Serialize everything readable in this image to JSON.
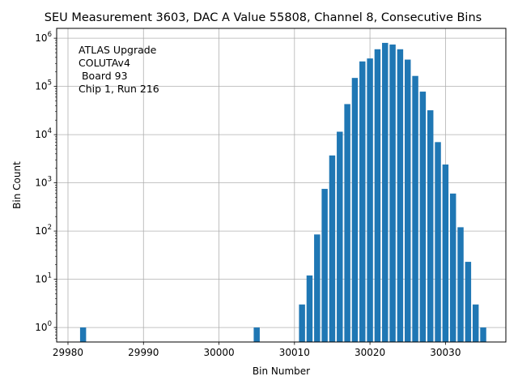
{
  "chart_data": {
    "type": "bar",
    "title": "SEU Measurement 3603, DAC A Value 55808, Channel 8, Consecutive Bins",
    "xlabel": "Bin Number",
    "ylabel": "Bin Count",
    "yscale": "log",
    "xlim": [
      29978.5,
      30038
    ],
    "ylim": [
      0.5,
      1600000
    ],
    "grid": true,
    "bar_color": "#1f77b4",
    "bar_width": 0.8,
    "x_ticks": [
      29980,
      29990,
      30000,
      30010,
      30020,
      30030
    ],
    "x_tick_labels": [
      "29980",
      "29990",
      "30000",
      "30010",
      "30020",
      "30030"
    ],
    "y_ticks": [
      1,
      10,
      100,
      1000,
      10000,
      100000,
      1000000
    ],
    "y_tick_base": "10",
    "y_tick_exponents": [
      "0",
      "1",
      "2",
      "3",
      "4",
      "5",
      "6"
    ],
    "annotation_lines": [
      "ATLAS Upgrade",
      "COLUTAv4",
      " Board 93",
      "Chip 1, Run 216"
    ],
    "bins": [
      29982,
      30005,
      30011,
      30012,
      30013,
      30014,
      30015,
      30016,
      30017,
      30018,
      30019,
      30020,
      30021,
      30022,
      30023,
      30024,
      30025,
      30026,
      30027,
      30028,
      30029,
      30030,
      30031,
      30032,
      30033,
      30034,
      30035
    ],
    "counts": [
      1,
      1,
      3,
      12,
      85,
      750,
      3700,
      11500,
      43000,
      150000,
      330000,
      380000,
      590000,
      800000,
      740000,
      590000,
      360000,
      165000,
      78000,
      32000,
      7000,
      2400,
      600,
      120,
      23,
      3,
      1
    ]
  }
}
